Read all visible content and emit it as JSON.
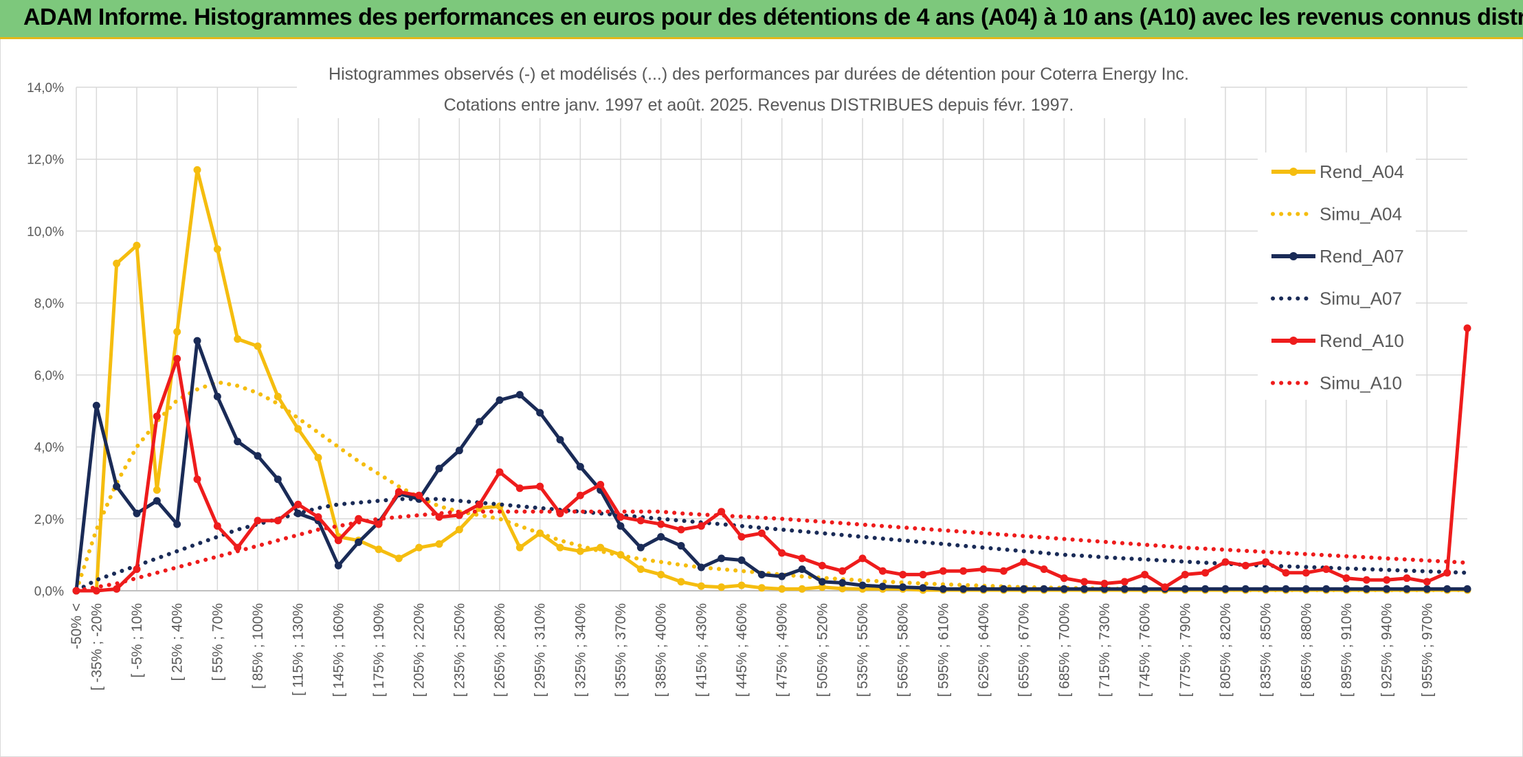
{
  "banner": {
    "title": "ADAM Informe. Histogrammes des performances en euros pour des détentions de 4 ans (A04) à 10 ans (A10) avec les revenus connus distribués"
  },
  "chart_data": {
    "type": "line",
    "title": "Histogrammes observés (-) et modélisés (...) des performances par durées de détention pour Coterra Energy Inc.",
    "subtitle": "Cotations entre janv. 1997 et août. 2025. Revenus DISTRIBUES depuis févr. 1997.",
    "ylim": [
      0,
      14
    ],
    "yticks": [
      0,
      2,
      4,
      6,
      8,
      10,
      12,
      14
    ],
    "ytick_labels": [
      "0,0%",
      "2,0%",
      "4,0%",
      "6,0%",
      "8,0%",
      "10,0%",
      "12,0%",
      "14,0%"
    ],
    "grid": true,
    "legend_position": "right",
    "x_labels": [
      "-50% <",
      "[ -35% ; -20%",
      "[ -5% ; 10%",
      "[ 25% ; 40%",
      "[ 55% ; 70%",
      "[ 85% ; 100%",
      "[ 115% ; 130%",
      "[ 145% ; 160%",
      "[ 175% ; 190%",
      "[ 205% ; 220%",
      "[ 235% ; 250%",
      "[ 265% ; 280%",
      "[ 295% ; 310%",
      "[ 325% ; 340%",
      "[ 355% ; 370%",
      "[ 385% ; 400%",
      "[ 415% ; 430%",
      "[ 445% ; 460%",
      "[ 475% ; 490%",
      "[ 505% ; 520%",
      "[ 535% ; 550%",
      "[ 565% ; 580%",
      "[ 595% ; 610%",
      "[ 625% ; 640%",
      "[ 655% ; 670%",
      "[ 685% ; 700%",
      "[ 715% ; 730%",
      "[ 745% ; 760%",
      "[ 775% ; 790%",
      "[ 805% ; 820%",
      "[ 835% ; 850%",
      "[ 865% ; 880%",
      "[ 895% ; 910%",
      "[ 925% ; 940%",
      "[ 955% ; 970%"
    ],
    "n_points": 70,
    "series": [
      {
        "name": "Rend_A04",
        "color": "#f5bd0f",
        "style": "solid",
        "values": [
          0,
          0,
          9.1,
          9.6,
          2.8,
          7.2,
          11.7,
          9.5,
          7.0,
          6.8,
          5.4,
          4.5,
          3.7,
          1.5,
          1.4,
          1.15,
          0.9,
          1.2,
          1.3,
          1.7,
          2.3,
          2.35,
          1.2,
          1.6,
          1.2,
          1.1,
          1.2,
          1.0,
          0.6,
          0.45,
          0.25,
          0.13,
          0.1,
          0.15,
          0.08,
          0.05,
          0.05,
          0.1,
          0.06,
          0.05,
          0.05,
          0.05,
          0.02,
          0.02,
          0.02,
          0.02,
          0.02,
          0.02,
          0.02,
          0.02,
          0.02,
          0.02,
          0.02,
          0.02,
          0.02,
          0.02,
          0.02,
          0.02,
          0.02,
          0.02,
          0.02,
          0.02,
          0.02,
          0.02,
          0.02,
          0.02,
          0.02,
          0.02,
          0.02,
          0.02
        ]
      },
      {
        "name": "Simu_A04",
        "color": "#f5bd0f",
        "style": "dotted",
        "values": [
          0,
          1.7,
          3.0,
          4.0,
          4.7,
          5.3,
          5.6,
          5.8,
          5.7,
          5.5,
          5.2,
          4.8,
          4.4,
          4.0,
          3.6,
          3.25,
          2.9,
          2.6,
          2.35,
          2.2,
          2.1,
          2.0,
          1.8,
          1.6,
          1.4,
          1.25,
          1.1,
          0.98,
          0.88,
          0.8,
          0.72,
          0.65,
          0.6,
          0.55,
          0.5,
          0.45,
          0.4,
          0.36,
          0.32,
          0.29,
          0.26,
          0.23,
          0.2,
          0.18,
          0.16,
          0.14,
          0.12,
          0.1,
          0.09,
          0.08,
          0.07,
          0.06,
          0.05,
          0.04,
          0.04,
          0.03,
          0.03,
          0.03,
          0.02,
          0.02,
          0.02,
          0.02,
          0.02,
          0.02,
          0.02,
          0.02,
          0.02,
          0.02,
          0.02,
          0.02
        ]
      },
      {
        "name": "Rend_A07",
        "color": "#1a2b57",
        "style": "solid",
        "values": [
          0,
          5.15,
          2.9,
          2.15,
          2.5,
          1.85,
          6.95,
          5.4,
          4.15,
          3.75,
          3.1,
          2.15,
          1.95,
          0.7,
          1.35,
          1.9,
          2.7,
          2.55,
          3.4,
          3.9,
          4.7,
          5.3,
          5.45,
          4.95,
          4.2,
          3.45,
          2.8,
          1.8,
          1.2,
          1.5,
          1.25,
          0.65,
          0.9,
          0.85,
          0.45,
          0.4,
          0.6,
          0.25,
          0.22,
          0.15,
          0.12,
          0.1,
          0.08,
          0.05,
          0.05,
          0.05,
          0.05,
          0.05,
          0.05,
          0.05,
          0.05,
          0.05,
          0.05,
          0.05,
          0.05,
          0.05,
          0.05,
          0.05,
          0.05,
          0.05,
          0.05,
          0.05,
          0.05,
          0.05,
          0.05,
          0.05,
          0.05,
          0.05,
          0.05,
          0.05
        ]
      },
      {
        "name": "Simu_A07",
        "color": "#1a2b57",
        "style": "dotted",
        "values": [
          0,
          0.3,
          0.5,
          0.7,
          0.9,
          1.1,
          1.3,
          1.5,
          1.7,
          1.85,
          2.0,
          2.15,
          2.3,
          2.4,
          2.45,
          2.5,
          2.55,
          2.55,
          2.55,
          2.5,
          2.45,
          2.4,
          2.35,
          2.3,
          2.25,
          2.2,
          2.15,
          2.1,
          2.05,
          2.0,
          1.95,
          1.9,
          1.85,
          1.8,
          1.75,
          1.7,
          1.65,
          1.6,
          1.55,
          1.5,
          1.45,
          1.4,
          1.35,
          1.3,
          1.25,
          1.2,
          1.15,
          1.1,
          1.05,
          1.0,
          0.97,
          0.93,
          0.9,
          0.87,
          0.84,
          0.81,
          0.78,
          0.75,
          0.72,
          0.7,
          0.68,
          0.66,
          0.64,
          0.62,
          0.6,
          0.58,
          0.56,
          0.54,
          0.52,
          0.5
        ]
      },
      {
        "name": "Rend_A10",
        "color": "#ee1c1c",
        "style": "solid",
        "values": [
          0,
          0,
          0.05,
          0.6,
          4.85,
          6.45,
          3.1,
          1.8,
          1.2,
          1.95,
          1.95,
          2.4,
          2.05,
          1.4,
          2.0,
          1.85,
          2.75,
          2.65,
          2.05,
          2.1,
          2.4,
          3.3,
          2.85,
          2.9,
          2.15,
          2.65,
          2.95,
          2.05,
          1.95,
          1.85,
          1.7,
          1.8,
          2.2,
          1.5,
          1.6,
          1.05,
          0.9,
          0.7,
          0.55,
          0.9,
          0.55,
          0.45,
          0.45,
          0.55,
          0.55,
          0.6,
          0.55,
          0.8,
          0.6,
          0.35,
          0.25,
          0.2,
          0.25,
          0.45,
          0.1,
          0.45,
          0.5,
          0.8,
          0.7,
          0.8,
          0.5,
          0.5,
          0.6,
          0.35,
          0.3,
          0.3,
          0.35,
          0.25,
          0.5,
          7.3
        ]
      },
      {
        "name": "Simu_A10",
        "color": "#ee1c1c",
        "style": "dotted",
        "values": [
          0,
          0.1,
          0.2,
          0.35,
          0.5,
          0.65,
          0.8,
          0.95,
          1.1,
          1.25,
          1.4,
          1.55,
          1.7,
          1.8,
          1.9,
          2.0,
          2.05,
          2.1,
          2.15,
          2.2,
          2.2,
          2.2,
          2.2,
          2.2,
          2.2,
          2.2,
          2.2,
          2.2,
          2.2,
          2.2,
          2.15,
          2.12,
          2.09,
          2.06,
          2.03,
          2.0,
          1.96,
          1.92,
          1.88,
          1.84,
          1.8,
          1.76,
          1.72,
          1.68,
          1.64,
          1.6,
          1.56,
          1.52,
          1.48,
          1.44,
          1.4,
          1.36,
          1.32,
          1.28,
          1.24,
          1.2,
          1.17,
          1.14,
          1.11,
          1.08,
          1.05,
          1.02,
          0.99,
          0.96,
          0.93,
          0.9,
          0.87,
          0.84,
          0.81,
          0.78
        ]
      }
    ]
  }
}
